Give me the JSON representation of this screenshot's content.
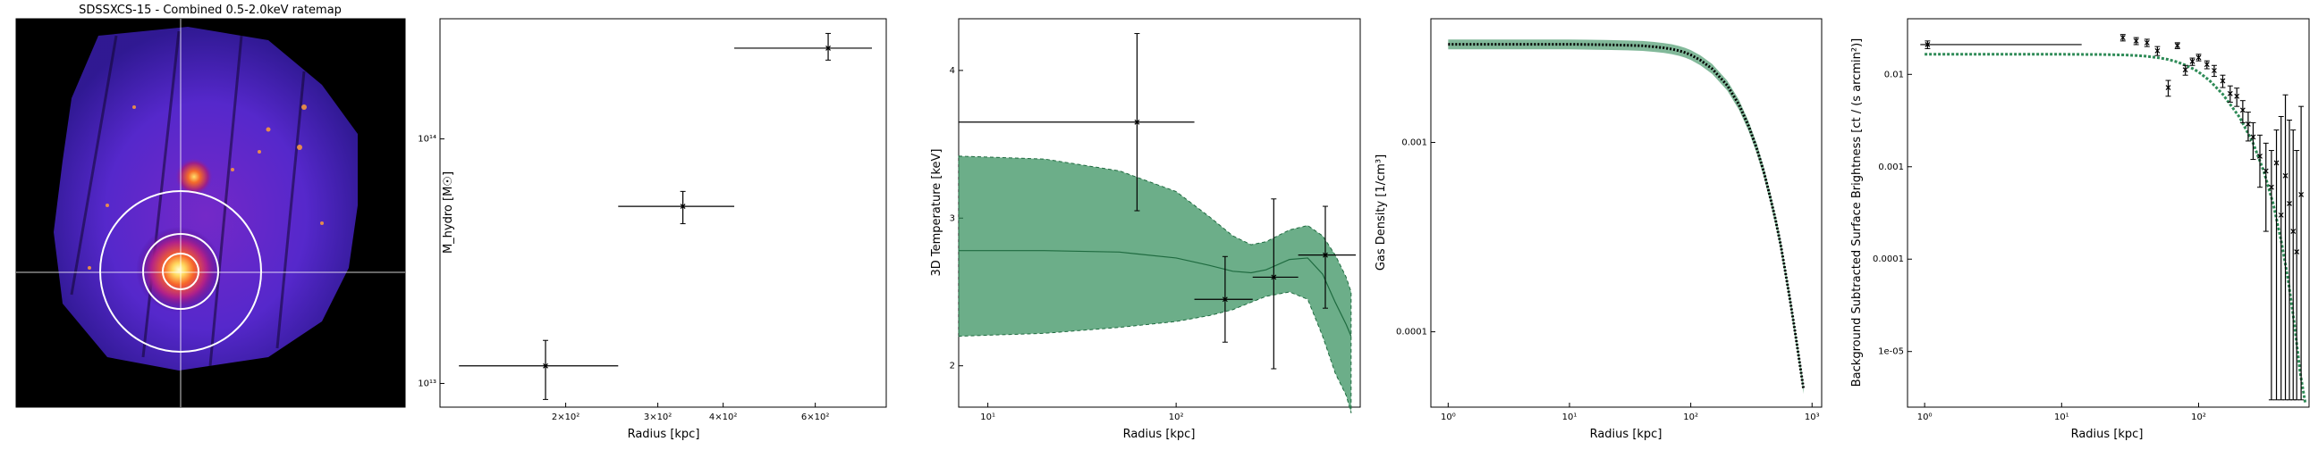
{
  "chart_data": [
    {
      "type": "heatmap",
      "title": "SDSSXCS-15 - Combined 0.5-2.0keV ratemap"
    },
    {
      "type": "scatter",
      "xlabel": "Radius [kpc]",
      "ylabel": "M_hydro [M☉]",
      "log_x": true,
      "log_y": true,
      "xlim": [
        115,
        820
      ],
      "ylim": [
        8000000000000.0,
        310000000000000.0
      ],
      "x_ticks": [
        {
          "v": 200,
          "label": "2×10²"
        },
        {
          "v": 300,
          "label": "3×10²"
        },
        {
          "v": 400,
          "label": "4×10²"
        },
        {
          "v": 600,
          "label": "6×10²"
        }
      ],
      "y_ticks": [
        {
          "v": 10000000000000.0,
          "label": "10¹³"
        },
        {
          "v": 100000000000000.0,
          "label": "10¹⁴"
        }
      ],
      "points": [
        {
          "x": 183,
          "y": 11800000000000.0,
          "xlo": 125,
          "xhi": 252,
          "ylo": 8600000000000.0,
          "yhi": 15000000000000.0
        },
        {
          "x": 335,
          "y": 53000000000000.0,
          "xlo": 252,
          "xhi": 420,
          "ylo": 45000000000000.0,
          "yhi": 61000000000000.0
        },
        {
          "x": 635,
          "y": 235000000000000.0,
          "xlo": 420,
          "xhi": 770,
          "ylo": 210000000000000.0,
          "yhi": 270000000000000.0
        }
      ]
    },
    {
      "type": "line",
      "xlabel": "Radius [kpc]",
      "ylabel": "3D Temperature [keV]",
      "log_x": true,
      "xlim": [
        7,
        950
      ],
      "ylim": [
        1.72,
        4.35
      ],
      "x_ticks": [
        {
          "v": 10,
          "label": "10¹"
        },
        {
          "v": 100,
          "label": "10²"
        },
        {
          "v": 1000,
          "label": "10³"
        }
      ],
      "y_ticks": [
        {
          "v": 2,
          "label": "2"
        },
        {
          "v": 3,
          "label": "3"
        },
        {
          "v": 4,
          "label": "4"
        }
      ],
      "model_x": [
        7,
        20,
        50,
        100,
        150,
        200,
        250,
        300,
        400,
        500,
        600,
        700,
        800,
        850
      ],
      "model": [
        2.78,
        2.78,
        2.77,
        2.73,
        2.68,
        2.64,
        2.63,
        2.65,
        2.72,
        2.73,
        2.62,
        2.43,
        2.28,
        2.2
      ],
      "model_lo": [
        2.2,
        2.22,
        2.26,
        2.3,
        2.34,
        2.38,
        2.43,
        2.47,
        2.5,
        2.45,
        2.2,
        1.95,
        1.8,
        1.68
      ],
      "model_hi": [
        3.42,
        3.4,
        3.32,
        3.18,
        3.01,
        2.88,
        2.82,
        2.84,
        2.92,
        2.95,
        2.88,
        2.75,
        2.6,
        2.5
      ],
      "points": [
        {
          "x": 62,
          "y": 3.65,
          "xlo": 7,
          "xhi": 125,
          "ylo": 3.05,
          "yhi": 4.25
        },
        {
          "x": 182,
          "y": 2.45,
          "xlo": 125,
          "xhi": 255,
          "ylo": 2.16,
          "yhi": 2.74
        },
        {
          "x": 330,
          "y": 2.6,
          "xlo": 255,
          "xhi": 445,
          "ylo": 1.98,
          "yhi": 3.13
        },
        {
          "x": 620,
          "y": 2.75,
          "xlo": 445,
          "xhi": 900,
          "ylo": 2.39,
          "yhi": 3.08
        }
      ]
    },
    {
      "type": "line",
      "xlabel": "Radius [kpc]",
      "ylabel": "Gas Density [1/cm³]",
      "log_x": true,
      "log_y": true,
      "xlim": [
        0.72,
        1200
      ],
      "ylim": [
        4e-05,
        0.0045
      ],
      "x_ticks": [
        {
          "v": 1,
          "label": "10⁰"
        },
        {
          "v": 10,
          "label": "10¹"
        },
        {
          "v": 100,
          "label": "10²"
        },
        {
          "v": 1000,
          "label": "10³"
        }
      ],
      "y_ticks": [
        {
          "v": 0.0001,
          "label": "0.0001"
        },
        {
          "v": 0.001,
          "label": "0.001"
        }
      ],
      "model_x": [
        1,
        10,
        20,
        30,
        40,
        50,
        60,
        70,
        80,
        90,
        100,
        120,
        150,
        200,
        250,
        300,
        350,
        400,
        450,
        500,
        550,
        600,
        650,
        700,
        750,
        800,
        850
      ],
      "model": [
        0.0033,
        0.0033,
        0.00328,
        0.00326,
        0.00324,
        0.0032,
        0.00316,
        0.00311,
        0.00305,
        0.00298,
        0.0029,
        0.00272,
        0.00245,
        0.002,
        0.00158,
        0.00122,
        0.00093,
        0.0007,
        0.00052,
        0.00039,
        0.00029,
        0.00021,
        0.000155,
        0.000115,
        8.6e-05,
        6.5e-05,
        5e-05
      ]
    },
    {
      "type": "scatter",
      "xlabel": "Radius [kpc]",
      "ylabel": "Background Subtracted Surface Brightness [ct / (s arcmin²)]",
      "log_x": true,
      "log_y": true,
      "xlim": [
        0.75,
        11
      ],
      "ylim": [
        2.5e-06,
        0.04
      ],
      "x_ticks": [
        {
          "v": 1,
          "label": "10⁰"
        },
        {
          "v": 10,
          "label": "10¹"
        }
      ],
      "y_ticks": [
        {
          "v": 1e-05,
          "label": "1e-05"
        },
        {
          "v": 0.0001,
          "label": "0.0001"
        },
        {
          "v": 0.001,
          "label": "0.001"
        },
        {
          "v": 0.01,
          "label": "0.01"
        }
      ],
      "x_ticks_extra": [
        {
          "v": 100,
          "label": "10²"
        }
      ],
      "model_x": [
        1,
        10,
        20,
        30,
        40,
        50,
        60,
        70,
        80,
        90,
        100,
        120,
        150,
        200,
        250,
        300,
        350,
        400,
        450,
        500,
        550,
        600
      ],
      "model": [
        0.0165,
        0.0165,
        0.0164,
        0.0162,
        0.0158,
        0.0152,
        0.0145,
        0.0136,
        0.0126,
        0.0116,
        0.0106,
        0.0086,
        0.0061,
        0.0034,
        0.0018,
        0.00088,
        0.0004,
        0.00016,
        6e-05,
        2e-05,
        6e-06,
        2.8e-06
      ],
      "points": [
        {
          "x": 1.05,
          "y": 0.021,
          "xlo": 0.93,
          "xhi": 14,
          "ylo": 0.019,
          "yhi": 0.023
        },
        {
          "x": 28,
          "y": 0.025,
          "ylo": 0.023,
          "yhi": 0.027
        },
        {
          "x": 35,
          "y": 0.023,
          "ylo": 0.021,
          "yhi": 0.025
        },
        {
          "x": 42,
          "y": 0.022,
          "ylo": 0.02,
          "yhi": 0.024
        },
        {
          "x": 50,
          "y": 0.018,
          "ylo": 0.016,
          "yhi": 0.02
        },
        {
          "x": 60,
          "y": 0.0072,
          "ylo": 0.0058,
          "yhi": 0.0086
        },
        {
          "x": 70,
          "y": 0.0205,
          "ylo": 0.019,
          "yhi": 0.022
        },
        {
          "x": 80,
          "y": 0.0112,
          "ylo": 0.0098,
          "yhi": 0.0125
        },
        {
          "x": 90,
          "y": 0.0138,
          "ylo": 0.0125,
          "yhi": 0.015
        },
        {
          "x": 100,
          "y": 0.0152,
          "ylo": 0.014,
          "yhi": 0.0165
        },
        {
          "x": 115,
          "y": 0.0128,
          "ylo": 0.0115,
          "yhi": 0.014
        },
        {
          "x": 130,
          "y": 0.011,
          "ylo": 0.0095,
          "yhi": 0.0125
        },
        {
          "x": 150,
          "y": 0.0085,
          "ylo": 0.0072,
          "yhi": 0.0098
        },
        {
          "x": 170,
          "y": 0.0062,
          "ylo": 0.005,
          "yhi": 0.0075
        },
        {
          "x": 190,
          "y": 0.0058,
          "ylo": 0.0045,
          "yhi": 0.0071
        },
        {
          "x": 210,
          "y": 0.0041,
          "ylo": 0.003,
          "yhi": 0.0052
        },
        {
          "x": 230,
          "y": 0.0029,
          "ylo": 0.0019,
          "yhi": 0.0039
        },
        {
          "x": 250,
          "y": 0.0021,
          "ylo": 0.0012,
          "yhi": 0.003
        },
        {
          "x": 280,
          "y": 0.0013,
          "ylo": 0.0006,
          "yhi": 0.0022
        },
        {
          "x": 310,
          "y": 0.0009,
          "ylo": 0.0002,
          "yhi": 0.0018
        },
        {
          "x": 340,
          "y": 0.0006,
          "ylo": 3e-06,
          "yhi": 0.0015
        },
        {
          "x": 370,
          "y": 0.0011,
          "ylo": 3e-06,
          "yhi": 0.0025
        },
        {
          "x": 400,
          "y": 0.0003,
          "ylo": 3e-06,
          "yhi": 0.0035
        },
        {
          "x": 430,
          "y": 0.0008,
          "ylo": 3e-06,
          "yhi": 0.006
        },
        {
          "x": 460,
          "y": 0.0004,
          "ylo": 3e-06,
          "yhi": 0.0032
        },
        {
          "x": 490,
          "y": 0.0002,
          "ylo": 3e-06,
          "yhi": 0.0025
        },
        {
          "x": 520,
          "y": 0.00012,
          "ylo": 3e-06,
          "yhi": 0.0015
        },
        {
          "x": 560,
          "y": 0.0005,
          "ylo": 3e-06,
          "yhi": 0.0045
        }
      ]
    }
  ]
}
